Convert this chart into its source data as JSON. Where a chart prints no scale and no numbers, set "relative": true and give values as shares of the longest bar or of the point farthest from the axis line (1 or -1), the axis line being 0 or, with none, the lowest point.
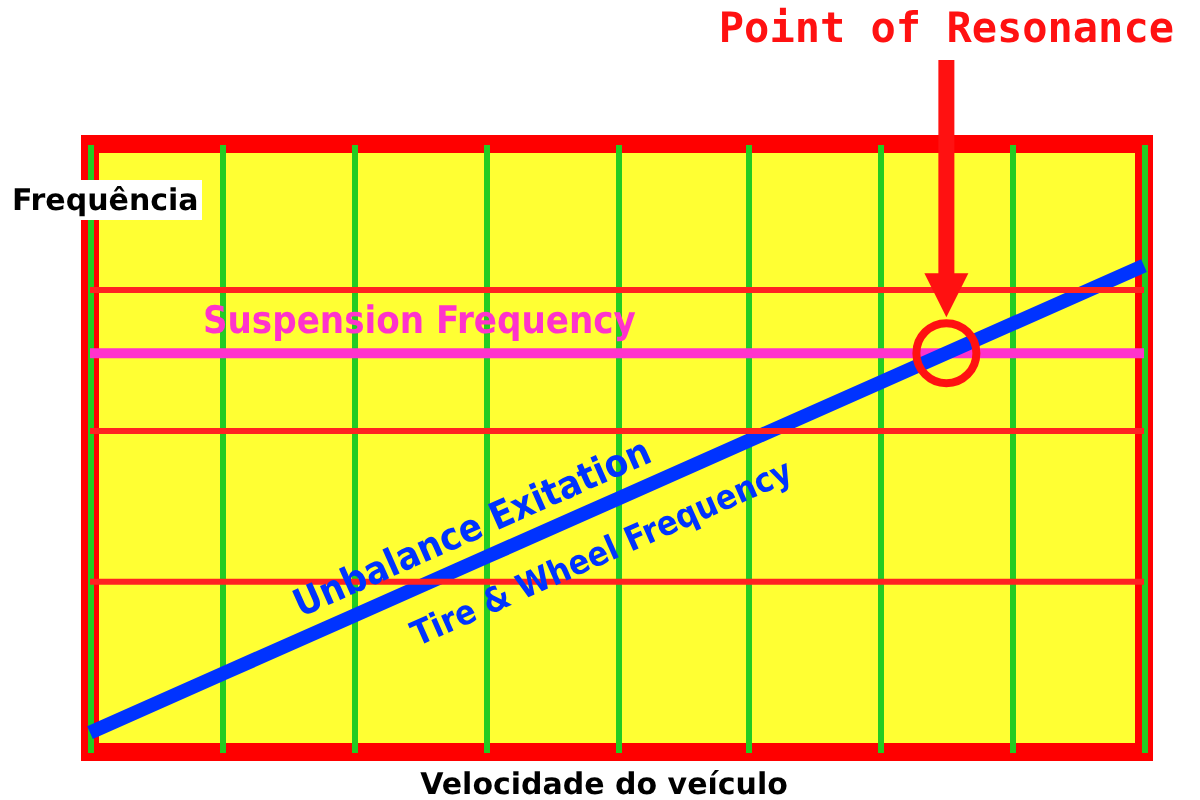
{
  "chart_data": {
    "type": "line",
    "relative": true,
    "xlabel": "Velocidade do veículo",
    "ylabel": "Frequência",
    "categories": [
      null,
      null,
      null,
      null,
      null,
      null,
      null,
      null,
      null
    ],
    "series": [
      {
        "name": "Suspension Frequency",
        "color": "#ff33cc",
        "values": [
          0.82,
          0.82,
          0.82,
          0.82,
          0.82,
          0.82,
          0.82,
          0.82,
          0.82
        ]
      },
      {
        "name": "Unbalance Exitation",
        "color": "#0033ff",
        "values": [
          0.04,
          0.16,
          0.28,
          0.4,
          0.52,
          0.64,
          0.76,
          0.88,
          1.0
        ]
      }
    ],
    "annotations": [
      "Point of Resonance",
      "Tire & Wheel Frequency"
    ],
    "ref_lines": [
      {
        "axis": "y",
        "value": 0.95,
        "color": "#ff2222"
      },
      {
        "axis": "y",
        "value": 0.66,
        "color": "#ff2222"
      },
      {
        "axis": "y",
        "value": 0.35,
        "color": "#ff2222"
      }
    ],
    "grid": "x"
  }
}
